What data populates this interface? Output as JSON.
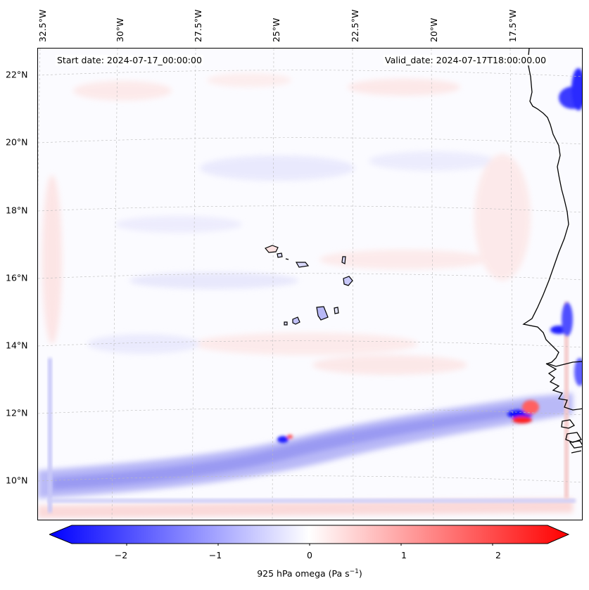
{
  "header": {
    "start_date": "Start date: 2024-07-17_00:00:00",
    "valid_date": "Valid_date: 2024-07-17T18:00:00.00"
  },
  "map": {
    "lat_labels": [
      "22°N",
      "20°N",
      "18°N",
      "16°N",
      "14°N",
      "12°N",
      "10°N"
    ],
    "lon_labels": [
      "32.5°W",
      "30°W",
      "27.5°W",
      "25°W",
      "22.5°W",
      "20°W",
      "17.5°W"
    ],
    "field": "925 hPa omega",
    "coastline": "West Africa coast and Cape Verde islands"
  },
  "colorbar": {
    "label_prefix": "925 hPa omega (Pa s",
    "label_exp": "−1",
    "label_suffix": ")",
    "ticks": [
      "−2",
      "−1",
      "0",
      "1",
      "2"
    ],
    "range": [
      -2.6,
      2.6
    ],
    "colors": {
      "negative": "#0000ff",
      "zero": "#ffffff",
      "positive": "#ff0000"
    }
  }
}
